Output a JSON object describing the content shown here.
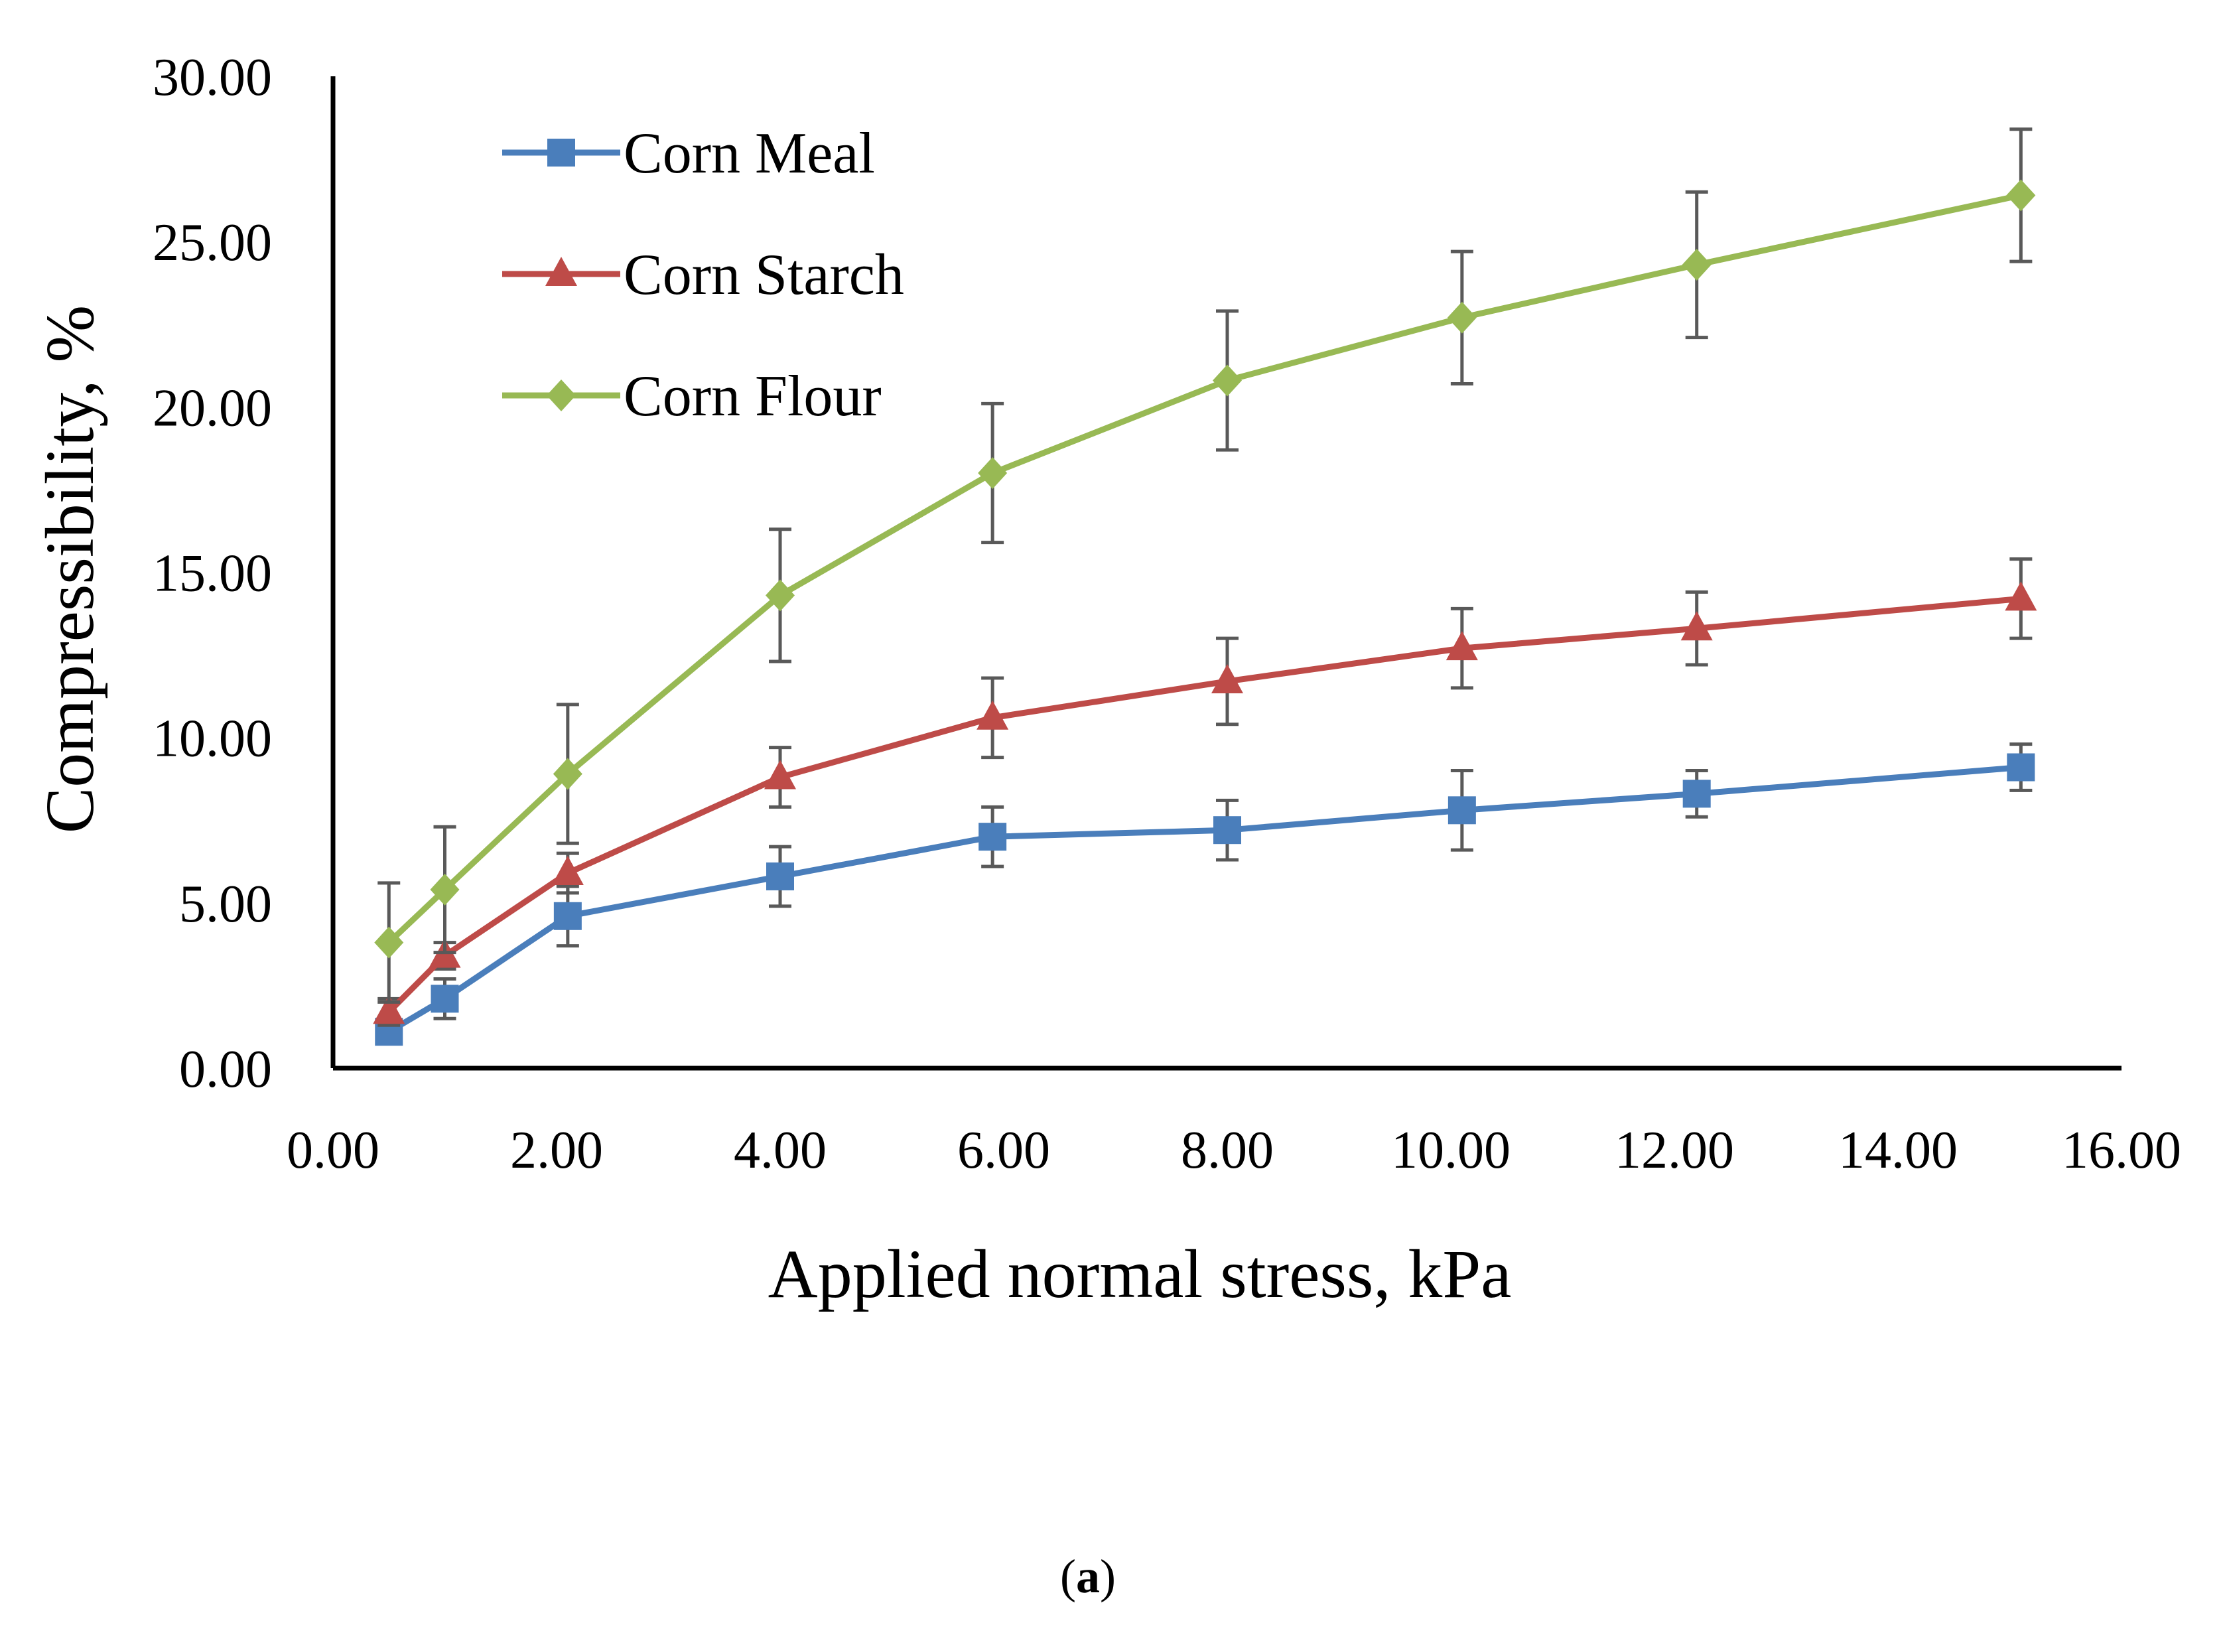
{
  "chart_data": {
    "type": "line",
    "xlabel": "Applied normal stress, kPa",
    "ylabel": "Compressibility, %",
    "xlim": [
      0,
      16
    ],
    "ylim": [
      0,
      30
    ],
    "x_ticks": [
      "0.00",
      "2.00",
      "4.00",
      "6.00",
      "8.00",
      "10.00",
      "12.00",
      "14.00",
      "16.00"
    ],
    "y_ticks": [
      "0.00",
      "5.00",
      "10.00",
      "15.00",
      "20.00",
      "25.00",
      "30.00"
    ],
    "grid": false,
    "legend_position": "top-left",
    "caption": {
      "open": "(",
      "letter": "a",
      "close": ")"
    },
    "series": [
      {
        "name": "Corn Meal",
        "color": "#4a7ebb",
        "marker": "square",
        "x": [
          0.5,
          1.0,
          2.1,
          4.0,
          5.9,
          8.0,
          10.1,
          12.2,
          15.1
        ],
        "y": [
          1.1,
          2.1,
          4.6,
          5.8,
          7.0,
          7.2,
          7.8,
          8.3,
          9.1
        ],
        "err": [
          0.3,
          0.6,
          0.9,
          0.9,
          0.9,
          0.9,
          1.2,
          0.7,
          0.7
        ]
      },
      {
        "name": "Corn Starch",
        "color": "#be4b48",
        "marker": "triangle",
        "x": [
          0.5,
          1.0,
          2.1,
          4.0,
          5.9,
          8.0,
          10.1,
          12.2,
          15.1
        ],
        "y": [
          1.7,
          3.4,
          5.9,
          8.8,
          10.6,
          11.7,
          12.7,
          13.3,
          14.2
        ],
        "err": [
          0.4,
          0.4,
          0.6,
          0.9,
          1.2,
          1.3,
          1.2,
          1.1,
          1.2
        ]
      },
      {
        "name": "Corn Flour",
        "color": "#98b954",
        "marker": "diamond",
        "x": [
          0.5,
          1.0,
          2.1,
          4.0,
          5.9,
          8.0,
          10.1,
          12.2,
          15.1
        ],
        "y": [
          3.8,
          5.4,
          8.9,
          14.3,
          18.0,
          20.8,
          22.7,
          24.3,
          26.4
        ],
        "err": [
          1.8,
          1.9,
          2.1,
          2.0,
          2.1,
          2.1,
          2.0,
          2.2,
          2.0
        ]
      }
    ]
  }
}
